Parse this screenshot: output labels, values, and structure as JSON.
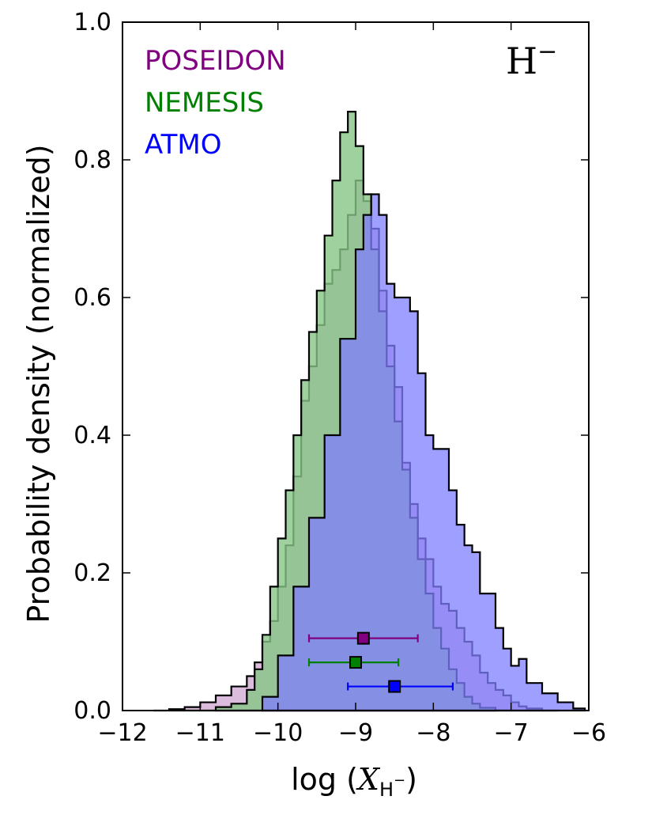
{
  "chart_data": {
    "type": "histogram",
    "species_label": {
      "main": "H",
      "sup": "−"
    },
    "xlabel": {
      "prefix": "log (",
      "var": "X",
      "sub": "H",
      "subsup": "−",
      "suffix": ")"
    },
    "ylabel": "Probability density (normalized)",
    "xlim": [
      -12,
      -6
    ],
    "ylim": [
      0,
      1.0
    ],
    "xticks": [
      -12,
      -11,
      -10,
      -9,
      -8,
      -7,
      -6
    ],
    "xtick_labels": [
      "−12",
      "−11",
      "−10",
      "−9",
      "−8",
      "−7",
      "−6"
    ],
    "yticks": [
      0.0,
      0.2,
      0.4,
      0.6,
      0.8,
      1.0
    ],
    "ytick_labels": [
      "0.0",
      "0.2",
      "0.4",
      "0.6",
      "0.8",
      "1.0"
    ],
    "grid": false,
    "legend_placement": "top-left",
    "series": [
      {
        "name": "POSEIDON",
        "color": "#800080",
        "fill": "#c48fc4",
        "fill_opacity": 0.6,
        "bin_edges": [
          -11.6,
          -11.4,
          -11.2,
          -11.0,
          -10.8,
          -10.6,
          -10.4,
          -10.3,
          -10.2,
          -10.1,
          -10.0,
          -9.9,
          -9.8,
          -9.7,
          -9.6,
          -9.5,
          -9.4,
          -9.3,
          -9.2,
          -9.1,
          -9.0,
          -8.9,
          -8.8,
          -8.7,
          -8.6,
          -8.5,
          -8.4,
          -8.3,
          -8.2,
          -8.1,
          -8.0,
          -7.9,
          -7.8,
          -7.7,
          -7.6,
          -7.5,
          -7.4,
          -7.3,
          -7.2,
          -7.1,
          -7.0,
          -6.9,
          -6.8,
          -6.6,
          -6.4
        ],
        "values": [
          0.0,
          0.002,
          0.005,
          0.012,
          0.022,
          0.035,
          0.05,
          0.07,
          0.1,
          0.13,
          0.18,
          0.24,
          0.34,
          0.45,
          0.5,
          0.56,
          0.62,
          0.64,
          0.67,
          0.72,
          0.77,
          0.74,
          0.7,
          0.61,
          0.53,
          0.47,
          0.36,
          0.3,
          0.25,
          0.22,
          0.18,
          0.155,
          0.145,
          0.12,
          0.1,
          0.08,
          0.055,
          0.04,
          0.03,
          0.022,
          0.012,
          0.006,
          0.003,
          0.0
        ]
      },
      {
        "name": "NEMESIS",
        "color": "#008000",
        "fill": "#86c686",
        "fill_opacity": 0.8,
        "bin_edges": [
          -10.8,
          -10.6,
          -10.4,
          -10.3,
          -10.2,
          -10.1,
          -10.0,
          -9.9,
          -9.8,
          -9.7,
          -9.6,
          -9.5,
          -9.4,
          -9.3,
          -9.2,
          -9.1,
          -9.0,
          -8.9,
          -8.8,
          -8.7,
          -8.6,
          -8.5,
          -8.4,
          -8.3,
          -8.2,
          -8.1,
          -8.0,
          -7.9,
          -7.8,
          -7.7,
          -7.6,
          -7.5,
          -7.4,
          -7.2
        ],
        "values": [
          0.005,
          0.01,
          0.03,
          0.06,
          0.11,
          0.18,
          0.25,
          0.32,
          0.4,
          0.48,
          0.55,
          0.61,
          0.69,
          0.77,
          0.84,
          0.87,
          0.82,
          0.75,
          0.67,
          0.58,
          0.5,
          0.42,
          0.35,
          0.28,
          0.22,
          0.17,
          0.12,
          0.09,
          0.06,
          0.04,
          0.02,
          0.01,
          0.004
        ]
      },
      {
        "name": "ATMO",
        "color": "#0000ff",
        "fill": "#7f7fff",
        "fill_opacity": 0.75,
        "bin_edges": [
          -10.2,
          -10.0,
          -9.8,
          -9.6,
          -9.4,
          -9.2,
          -9.0,
          -8.9,
          -8.8,
          -8.7,
          -8.6,
          -8.5,
          -8.4,
          -8.3,
          -8.2,
          -8.1,
          -8.0,
          -7.9,
          -7.8,
          -7.7,
          -7.6,
          -7.5,
          -7.4,
          -7.3,
          -7.2,
          -7.1,
          -7.0,
          -6.9,
          -6.8,
          -6.6,
          -6.4,
          -6.2,
          -6.05
        ],
        "values": [
          0.02,
          0.08,
          0.18,
          0.28,
          0.4,
          0.54,
          0.67,
          0.72,
          0.75,
          0.72,
          0.62,
          0.6,
          0.6,
          0.58,
          0.49,
          0.4,
          0.38,
          0.38,
          0.32,
          0.27,
          0.24,
          0.23,
          0.17,
          0.17,
          0.12,
          0.09,
          0.065,
          0.075,
          0.04,
          0.025,
          0.012,
          0.003
        ]
      }
    ],
    "error_bars": [
      {
        "series": "POSEIDON",
        "y": 0.105,
        "median": -8.9,
        "low": -9.6,
        "high": -8.2
      },
      {
        "series": "NEMESIS",
        "y": 0.07,
        "median": -9.0,
        "low": -9.6,
        "high": -8.45
      },
      {
        "series": "ATMO",
        "y": 0.035,
        "median": -8.5,
        "low": -9.1,
        "high": -7.75
      }
    ]
  }
}
